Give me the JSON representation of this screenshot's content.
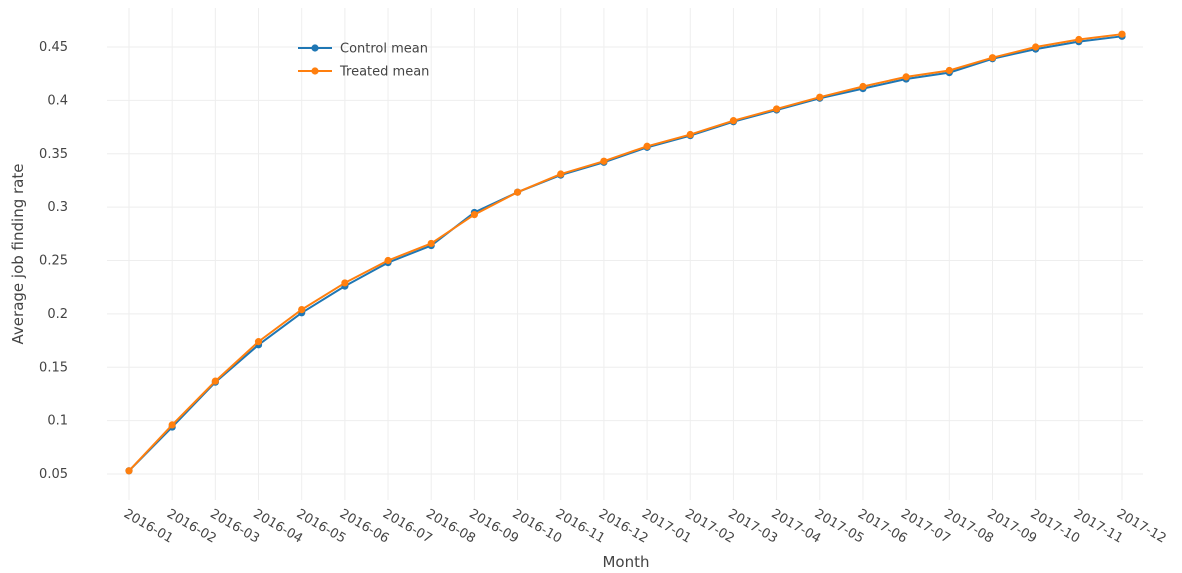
{
  "chart_data": {
    "type": "line",
    "xlabel": "Month",
    "ylabel": "Average job finding rate",
    "categories": [
      "2016-01",
      "2016-02",
      "2016-03",
      "2016-04",
      "2016-05",
      "2016-06",
      "2016-07",
      "2016-08",
      "2016-09",
      "2016-10",
      "2016-11",
      "2016-12",
      "2017-01",
      "2017-02",
      "2017-03",
      "2017-04",
      "2017-05",
      "2017-06",
      "2017-07",
      "2017-08",
      "2017-09",
      "2017-10",
      "2017-11",
      "2017-12"
    ],
    "y_ticks": [
      "0.05",
      "0.1",
      "0.15",
      "0.2",
      "0.25",
      "0.3",
      "0.35",
      "0.4",
      "0.45"
    ],
    "ylim": [
      0.04,
      0.475
    ],
    "grid": true,
    "legend_position": "top-left",
    "series": [
      {
        "name": "Control mean",
        "color": "#1f77b4",
        "values": [
          0.053,
          0.094,
          0.136,
          0.171,
          0.201,
          0.226,
          0.248,
          0.264,
          0.295,
          0.314,
          0.33,
          0.342,
          0.356,
          0.367,
          0.38,
          0.391,
          0.402,
          0.411,
          0.42,
          0.426,
          0.439,
          0.448,
          0.455,
          0.46
        ]
      },
      {
        "name": "Treated mean",
        "color": "#ff7f0e",
        "values": [
          0.053,
          0.096,
          0.137,
          0.174,
          0.204,
          0.229,
          0.25,
          0.266,
          0.293,
          0.314,
          0.331,
          0.343,
          0.357,
          0.368,
          0.381,
          0.392,
          0.403,
          0.413,
          0.422,
          0.428,
          0.44,
          0.45,
          0.457,
          0.462
        ]
      }
    ]
  }
}
